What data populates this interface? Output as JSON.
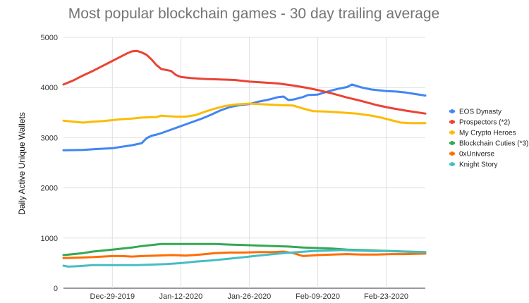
{
  "chart_data": {
    "type": "line",
    "title": "Most popular blockchain games - 30 day trailing average",
    "xlabel": "",
    "ylabel": "Daily Active Unique Wallets",
    "ylim": [
      0,
      5000
    ],
    "yticks": [
      0,
      1000,
      2000,
      3000,
      4000,
      5000
    ],
    "x_range": [
      "2019-12-19",
      "2020-03-02"
    ],
    "xticks": [
      {
        "date": "2019-12-29",
        "label": "Dec-29-2019"
      },
      {
        "date": "2020-01-12",
        "label": "Jan-12-2020"
      },
      {
        "date": "2020-01-26",
        "label": "Jan-26-2020"
      },
      {
        "date": "2020-02-09",
        "label": "Feb-09-2020"
      },
      {
        "date": "2020-02-23",
        "label": "Feb-23-2020"
      }
    ],
    "grid": "horizontal",
    "legend_position": "right",
    "series": [
      {
        "name": "EOS Dynasty",
        "color": "#4285f4",
        "points": [
          [
            "2019-12-19",
            2750
          ],
          [
            "2019-12-23",
            2755
          ],
          [
            "2019-12-26",
            2775
          ],
          [
            "2019-12-29",
            2790
          ],
          [
            "2019-12-31",
            2820
          ],
          [
            "2020-01-02",
            2850
          ],
          [
            "2020-01-04",
            2890
          ],
          [
            "2020-01-05",
            2990
          ],
          [
            "2020-01-06",
            3040
          ],
          [
            "2020-01-07",
            3060
          ],
          [
            "2020-01-08",
            3090
          ],
          [
            "2020-01-10",
            3160
          ],
          [
            "2020-01-12",
            3230
          ],
          [
            "2020-01-14",
            3300
          ],
          [
            "2020-01-16",
            3370
          ],
          [
            "2020-01-18",
            3450
          ],
          [
            "2020-01-20",
            3540
          ],
          [
            "2020-01-22",
            3610
          ],
          [
            "2020-01-24",
            3650
          ],
          [
            "2020-01-26",
            3670
          ],
          [
            "2020-01-28",
            3720
          ],
          [
            "2020-01-30",
            3760
          ],
          [
            "2020-02-01",
            3810
          ],
          [
            "2020-02-02",
            3820
          ],
          [
            "2020-02-03",
            3750
          ],
          [
            "2020-02-04",
            3760
          ],
          [
            "2020-02-06",
            3810
          ],
          [
            "2020-02-07",
            3850
          ],
          [
            "2020-02-09",
            3860
          ],
          [
            "2020-02-11",
            3920
          ],
          [
            "2020-02-13",
            3970
          ],
          [
            "2020-02-14",
            3990
          ],
          [
            "2020-02-15",
            4010
          ],
          [
            "2020-02-16",
            4060
          ],
          [
            "2020-02-18",
            4000
          ],
          [
            "2020-02-20",
            3960
          ],
          [
            "2020-02-22",
            3940
          ],
          [
            "2020-02-23",
            3930
          ],
          [
            "2020-02-25",
            3920
          ],
          [
            "2020-02-27",
            3900
          ],
          [
            "2020-02-29",
            3870
          ],
          [
            "2020-03-02",
            3840
          ]
        ]
      },
      {
        "name": "Prospectors (*2)",
        "color": "#ea4335",
        "points": [
          [
            "2019-12-19",
            4060
          ],
          [
            "2019-12-21",
            4140
          ],
          [
            "2019-12-23",
            4240
          ],
          [
            "2019-12-25",
            4330
          ],
          [
            "2019-12-27",
            4430
          ],
          [
            "2019-12-29",
            4530
          ],
          [
            "2019-12-31",
            4630
          ],
          [
            "2020-01-01",
            4680
          ],
          [
            "2020-01-02",
            4720
          ],
          [
            "2020-01-03",
            4730
          ],
          [
            "2020-01-04",
            4700
          ],
          [
            "2020-01-05",
            4650
          ],
          [
            "2020-01-06",
            4560
          ],
          [
            "2020-01-07",
            4450
          ],
          [
            "2020-01-08",
            4370
          ],
          [
            "2020-01-10",
            4330
          ],
          [
            "2020-01-11",
            4250
          ],
          [
            "2020-01-12",
            4210
          ],
          [
            "2020-01-14",
            4190
          ],
          [
            "2020-01-17",
            4170
          ],
          [
            "2020-01-20",
            4160
          ],
          [
            "2020-01-23",
            4150
          ],
          [
            "2020-01-26",
            4120
          ],
          [
            "2020-01-29",
            4100
          ],
          [
            "2020-02-01",
            4080
          ],
          [
            "2020-02-04",
            4040
          ],
          [
            "2020-02-07",
            3990
          ],
          [
            "2020-02-09",
            3950
          ],
          [
            "2020-02-12",
            3880
          ],
          [
            "2020-02-15",
            3800
          ],
          [
            "2020-02-18",
            3730
          ],
          [
            "2020-02-21",
            3650
          ],
          [
            "2020-02-24",
            3590
          ],
          [
            "2020-02-27",
            3540
          ],
          [
            "2020-03-02",
            3480
          ]
        ]
      },
      {
        "name": "My Crypto Heroes",
        "color": "#fbbc04",
        "points": [
          [
            "2019-12-19",
            3340
          ],
          [
            "2019-12-21",
            3320
          ],
          [
            "2019-12-23",
            3300
          ],
          [
            "2019-12-25",
            3320
          ],
          [
            "2019-12-27",
            3330
          ],
          [
            "2019-12-29",
            3350
          ],
          [
            "2019-12-31",
            3370
          ],
          [
            "2020-01-02",
            3380
          ],
          [
            "2020-01-04",
            3400
          ],
          [
            "2020-01-06",
            3410
          ],
          [
            "2020-01-07",
            3410
          ],
          [
            "2020-01-08",
            3440
          ],
          [
            "2020-01-09",
            3430
          ],
          [
            "2020-01-11",
            3420
          ],
          [
            "2020-01-13",
            3420
          ],
          [
            "2020-01-15",
            3450
          ],
          [
            "2020-01-17",
            3520
          ],
          [
            "2020-01-19",
            3580
          ],
          [
            "2020-01-21",
            3630
          ],
          [
            "2020-01-23",
            3660
          ],
          [
            "2020-01-26",
            3680
          ],
          [
            "2020-01-28",
            3670
          ],
          [
            "2020-01-30",
            3660
          ],
          [
            "2020-02-01",
            3650
          ],
          [
            "2020-02-04",
            3640
          ],
          [
            "2020-02-06",
            3580
          ],
          [
            "2020-02-08",
            3530
          ],
          [
            "2020-02-11",
            3520
          ],
          [
            "2020-02-14",
            3500
          ],
          [
            "2020-02-17",
            3480
          ],
          [
            "2020-02-20",
            3440
          ],
          [
            "2020-02-22",
            3400
          ],
          [
            "2020-02-24",
            3350
          ],
          [
            "2020-02-26",
            3300
          ],
          [
            "2020-02-28",
            3290
          ],
          [
            "2020-03-02",
            3290
          ]
        ]
      },
      {
        "name": "Blockchain Cuties (*3)",
        "color": "#34a853",
        "points": [
          [
            "2019-12-19",
            660
          ],
          [
            "2019-12-21",
            680
          ],
          [
            "2019-12-23",
            700
          ],
          [
            "2019-12-25",
            730
          ],
          [
            "2019-12-27",
            750
          ],
          [
            "2019-12-29",
            770
          ],
          [
            "2019-12-31",
            790
          ],
          [
            "2020-01-02",
            810
          ],
          [
            "2020-01-04",
            840
          ],
          [
            "2020-01-06",
            860
          ],
          [
            "2020-01-08",
            880
          ],
          [
            "2020-01-10",
            880
          ],
          [
            "2020-01-13",
            880
          ],
          [
            "2020-01-16",
            880
          ],
          [
            "2020-01-19",
            880
          ],
          [
            "2020-01-22",
            870
          ],
          [
            "2020-01-25",
            860
          ],
          [
            "2020-01-28",
            850
          ],
          [
            "2020-01-31",
            840
          ],
          [
            "2020-02-03",
            830
          ],
          [
            "2020-02-06",
            810
          ],
          [
            "2020-02-09",
            800
          ],
          [
            "2020-02-12",
            790
          ],
          [
            "2020-02-15",
            770
          ],
          [
            "2020-02-18",
            760
          ],
          [
            "2020-02-21",
            750
          ],
          [
            "2020-02-24",
            740
          ],
          [
            "2020-02-27",
            730
          ],
          [
            "2020-03-02",
            720
          ]
        ]
      },
      {
        "name": "0xUniverse",
        "color": "#ff6d01",
        "points": [
          [
            "2019-12-19",
            600
          ],
          [
            "2019-12-22",
            610
          ],
          [
            "2019-12-25",
            620
          ],
          [
            "2019-12-27",
            630
          ],
          [
            "2019-12-29",
            640
          ],
          [
            "2019-12-31",
            640
          ],
          [
            "2020-01-02",
            630
          ],
          [
            "2020-01-04",
            640
          ],
          [
            "2020-01-07",
            650
          ],
          [
            "2020-01-10",
            660
          ],
          [
            "2020-01-13",
            650
          ],
          [
            "2020-01-16",
            670
          ],
          [
            "2020-01-19",
            700
          ],
          [
            "2020-01-22",
            710
          ],
          [
            "2020-01-25",
            710
          ],
          [
            "2020-01-28",
            720
          ],
          [
            "2020-01-31",
            720
          ],
          [
            "2020-02-02",
            730
          ],
          [
            "2020-02-04",
            700
          ],
          [
            "2020-02-06",
            640
          ],
          [
            "2020-02-09",
            660
          ],
          [
            "2020-02-12",
            670
          ],
          [
            "2020-02-15",
            680
          ],
          [
            "2020-02-18",
            670
          ],
          [
            "2020-02-21",
            670
          ],
          [
            "2020-02-24",
            680
          ],
          [
            "2020-02-27",
            680
          ],
          [
            "2020-03-02",
            690
          ]
        ]
      },
      {
        "name": "Knight Story",
        "color": "#46bdc6",
        "points": [
          [
            "2019-12-19",
            450
          ],
          [
            "2019-12-20",
            430
          ],
          [
            "2019-12-22",
            440
          ],
          [
            "2019-12-25",
            460
          ],
          [
            "2019-12-28",
            460
          ],
          [
            "2019-12-31",
            460
          ],
          [
            "2020-01-03",
            460
          ],
          [
            "2020-01-06",
            470
          ],
          [
            "2020-01-09",
            480
          ],
          [
            "2020-01-12",
            500
          ],
          [
            "2020-01-15",
            530
          ],
          [
            "2020-01-18",
            550
          ],
          [
            "2020-01-21",
            580
          ],
          [
            "2020-01-24",
            610
          ],
          [
            "2020-01-27",
            640
          ],
          [
            "2020-01-30",
            670
          ],
          [
            "2020-02-02",
            700
          ],
          [
            "2020-02-05",
            720
          ],
          [
            "2020-02-08",
            740
          ],
          [
            "2020-02-11",
            750
          ],
          [
            "2020-02-14",
            760
          ],
          [
            "2020-02-17",
            750
          ],
          [
            "2020-02-20",
            740
          ],
          [
            "2020-02-23",
            740
          ],
          [
            "2020-02-26",
            730
          ],
          [
            "2020-02-29",
            720
          ],
          [
            "2020-03-02",
            720
          ]
        ]
      }
    ]
  }
}
